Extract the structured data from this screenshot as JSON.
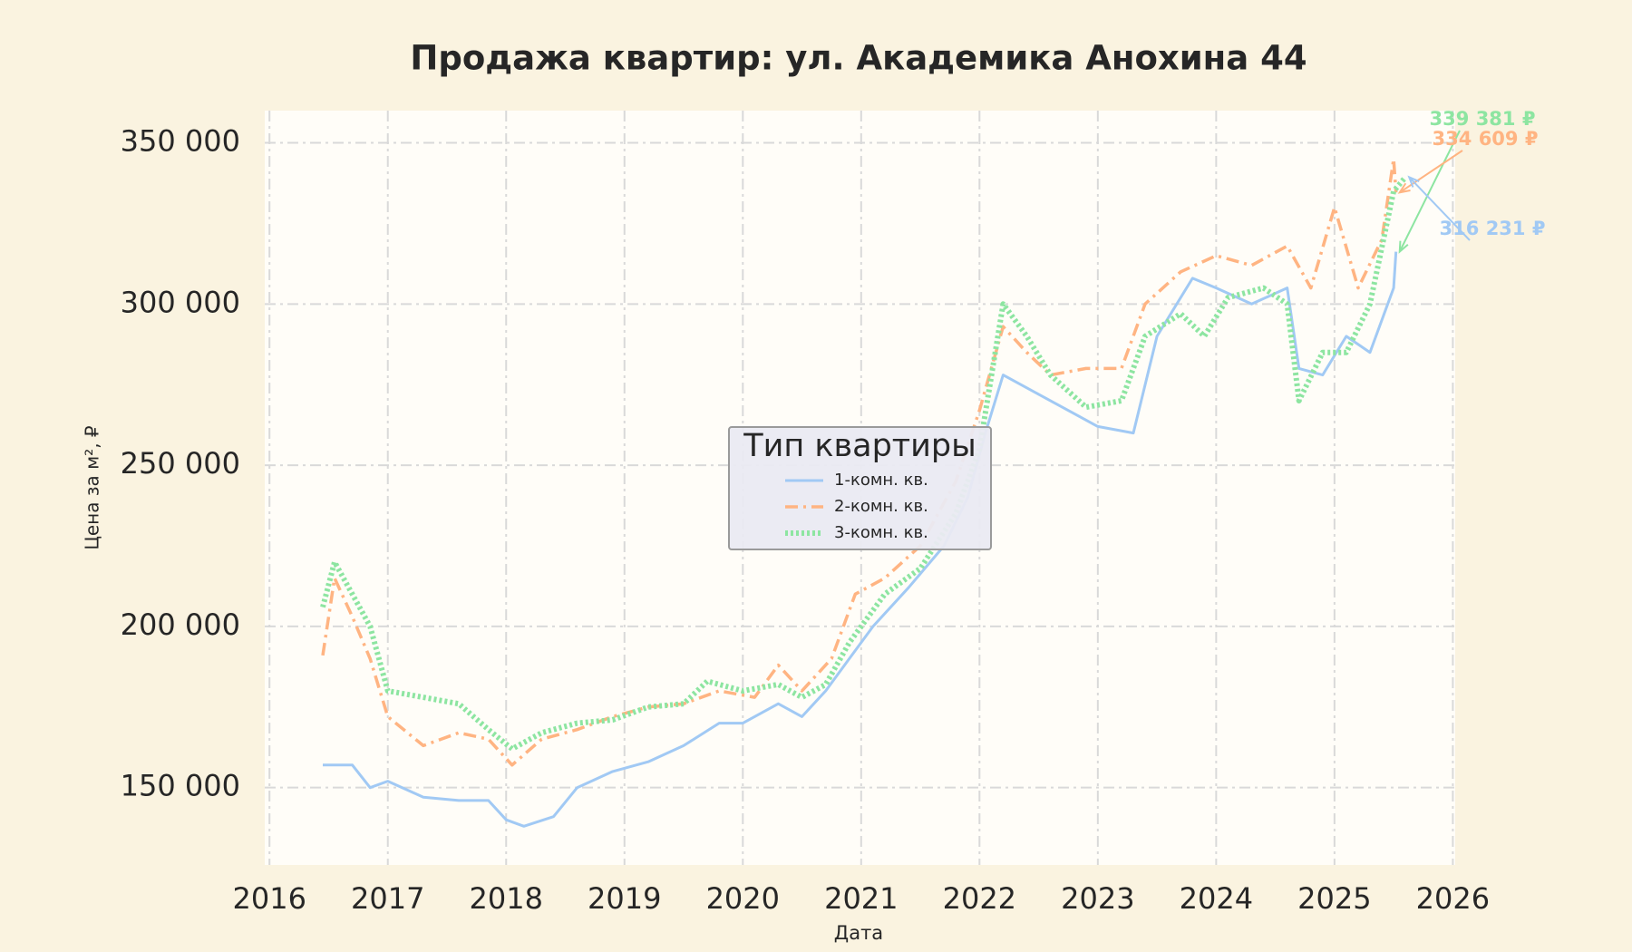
{
  "chart_data": {
    "type": "line",
    "title": "Продажа квартир: ул. Академика Анохина 44",
    "x_label": "Дата",
    "y_label": "Цена за м², ₽",
    "xlim": [
      2015.96,
      2026.02
    ],
    "xticks": [
      2016,
      2017,
      2018,
      2019,
      2020,
      2021,
      2022,
      2023,
      2024,
      2025,
      2026
    ],
    "ylim": [
      126000,
      360000
    ],
    "yticks": [
      {
        "value": 150000,
        "label": "150 000"
      },
      {
        "value": 200000,
        "label": "200 000"
      },
      {
        "value": 250000,
        "label": "250 000"
      },
      {
        "value": 300000,
        "label": "300 000"
      },
      {
        "value": 350000,
        "label": "350 000"
      }
    ],
    "grid": true,
    "legend_title": "Тип квартиры",
    "legend_position": "center",
    "series": [
      {
        "name": "1-комн. кв.",
        "color": "#a1c9f4",
        "linestyle": "solid",
        "x": [
          2016.45,
          2016.7,
          2016.85,
          2017.0,
          2017.3,
          2017.6,
          2017.85,
          2018.0,
          2018.15,
          2018.4,
          2018.6,
          2018.9,
          2019.2,
          2019.5,
          2019.8,
          2020.0,
          2020.3,
          2020.5,
          2020.7,
          2020.9,
          2021.1,
          2021.4,
          2021.7,
          2021.9,
          2022.05,
          2022.2,
          2022.5,
          2022.8,
          2023.0,
          2023.3,
          2023.5,
          2023.8,
          2024.0,
          2024.3,
          2024.6,
          2024.7,
          2024.9,
          2025.1,
          2025.3,
          2025.5,
          2025.52
        ],
        "values": [
          157000,
          157000,
          150000,
          152000,
          147000,
          146000,
          146000,
          140000,
          138000,
          141000,
          150000,
          155000,
          158000,
          163000,
          170000,
          170000,
          176000,
          172000,
          180000,
          190000,
          200000,
          212000,
          225000,
          240000,
          260000,
          278000,
          272000,
          266000,
          262000,
          260000,
          290000,
          308000,
          305000,
          300000,
          305000,
          280000,
          278000,
          290000,
          285000,
          305000,
          316231
        ]
      },
      {
        "name": "2-комн. кв.",
        "color": "#ffb482",
        "linestyle": "dashdot",
        "x": [
          2016.45,
          2016.55,
          2016.7,
          2016.85,
          2017.0,
          2017.3,
          2017.6,
          2017.85,
          2018.05,
          2018.3,
          2018.6,
          2018.9,
          2019.2,
          2019.5,
          2019.8,
          2020.1,
          2020.3,
          2020.5,
          2020.75,
          2020.95,
          2021.2,
          2021.5,
          2021.8,
          2022.0,
          2022.2,
          2022.4,
          2022.6,
          2022.9,
          2023.2,
          2023.4,
          2023.7,
          2024.0,
          2024.3,
          2024.6,
          2024.8,
          2025.0,
          2025.2,
          2025.4,
          2025.5,
          2025.52
        ],
        "values": [
          191000,
          215000,
          203000,
          190000,
          172000,
          163000,
          167000,
          165000,
          157000,
          165000,
          168000,
          172000,
          175000,
          176000,
          180000,
          178000,
          188000,
          180000,
          190000,
          210000,
          215000,
          225000,
          245000,
          267000,
          293000,
          285000,
          278000,
          280000,
          280000,
          300000,
          310000,
          315000,
          312000,
          318000,
          305000,
          330000,
          305000,
          320000,
          345000,
          334609
        ]
      },
      {
        "name": "3-комн. кв.",
        "color": "#8de5a1",
        "linestyle": "dotted",
        "x": [
          2016.45,
          2016.55,
          2016.7,
          2016.85,
          2017.0,
          2017.3,
          2017.6,
          2017.85,
          2018.05,
          2018.3,
          2018.6,
          2018.9,
          2019.2,
          2019.5,
          2019.7,
          2020.0,
          2020.3,
          2020.5,
          2020.7,
          2020.9,
          2021.2,
          2021.5,
          2021.8,
          2022.0,
          2022.2,
          2022.4,
          2022.6,
          2022.9,
          2023.2,
          2023.4,
          2023.7,
          2023.9,
          2024.1,
          2024.4,
          2024.6,
          2024.7,
          2024.9,
          2025.1,
          2025.3,
          2025.5,
          2025.6
        ],
        "values": [
          206000,
          220000,
          210000,
          200000,
          180000,
          178000,
          176000,
          168000,
          162000,
          167000,
          170000,
          171000,
          175000,
          176000,
          183000,
          180000,
          182000,
          178000,
          182000,
          195000,
          210000,
          218000,
          235000,
          255000,
          300000,
          290000,
          278000,
          268000,
          270000,
          290000,
          297000,
          290000,
          302000,
          305000,
          300000,
          270000,
          285000,
          285000,
          300000,
          335000,
          339381
        ]
      }
    ],
    "annotations": [
      {
        "text": "339 381 ₽",
        "color": "#8de5a1"
      },
      {
        "text": "334 609 ₽",
        "color": "#ffb482"
      },
      {
        "text": "316 231 ₽",
        "color": "#a1c9f4"
      }
    ]
  }
}
